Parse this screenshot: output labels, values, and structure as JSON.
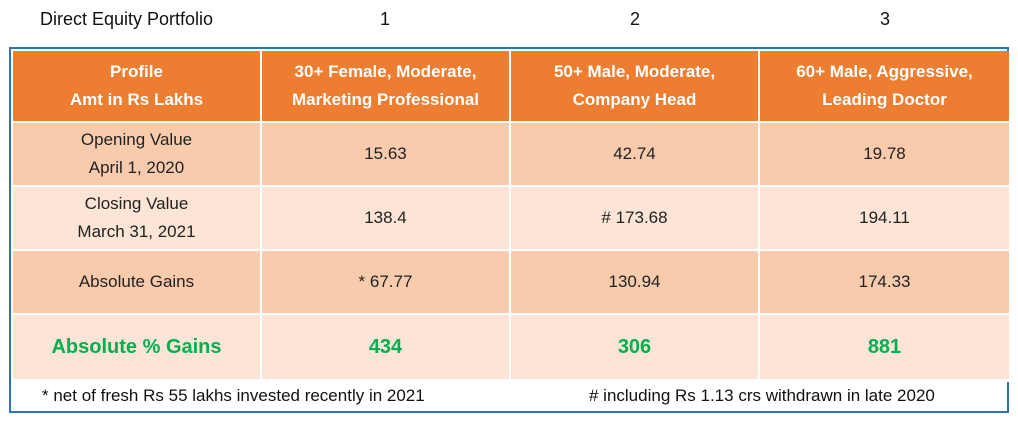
{
  "header_row": {
    "title": "Direct Equity Portfolio",
    "col1": "1",
    "col2": "2",
    "col3": "3"
  },
  "table": {
    "headers": [
      "Profile\nAmt in Rs Lakhs",
      "30+ Female, Moderate,\nMarketing Professional",
      "50+ Male, Moderate,\nCompany Head",
      "60+ Male, Aggressive,\nLeading Doctor"
    ],
    "rows": [
      {
        "label": "Opening Value\nApril 1, 2020",
        "values": [
          "15.63",
          "42.74",
          "19.78"
        ]
      },
      {
        "label": "Closing Value\nMarch 31, 2021",
        "values": [
          "138.4",
          "# 173.68",
          "194.11"
        ]
      },
      {
        "label": "Absolute Gains",
        "values": [
          "* 67.77",
          "130.94",
          "174.33"
        ]
      },
      {
        "label": "Absolute % Gains",
        "values": [
          "434",
          "306",
          "881"
        ]
      }
    ]
  },
  "footnotes": {
    "left": "* net of fresh Rs 55 lakhs invested recently in 2021",
    "right": "# including Rs 1.13 crs withdrawn in late 2020"
  },
  "colors": {
    "header_bg": "#ed7d31",
    "band_dark": "#f8cbad",
    "band_light": "#fce4d6",
    "gain_text": "#00b050",
    "frame_border": "#2e74b5"
  }
}
